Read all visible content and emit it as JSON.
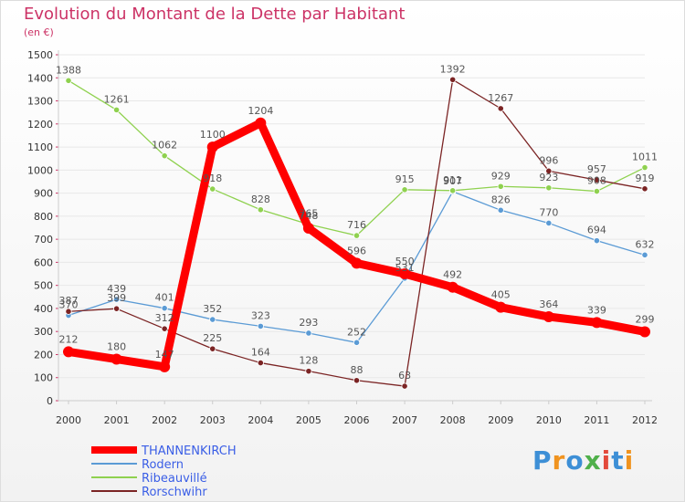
{
  "header": {
    "title": "Evolution du Montant de la Dette par Habitant",
    "subtitle": "(en €)"
  },
  "logo": {
    "text": "Proxiti",
    "letter_colors": [
      "#3d8fd6",
      "#f0931f",
      "#3d8fd6",
      "#4fb04a",
      "#e34a3b",
      "#3d8fd6",
      "#f0931f"
    ]
  },
  "colors": {
    "axis": "#cccccc",
    "grid": "#e8e8e8",
    "tick_text": "#333333",
    "label_text": "#555555",
    "title": "#cc3366",
    "legend_text": "#3a5ee6"
  },
  "chart_data": {
    "type": "line",
    "title": "Evolution du Montant de la Dette par Habitant",
    "ylabel": "(en €)",
    "xlabel": "",
    "x": [
      "2000",
      "2001",
      "2002",
      "2003",
      "2004",
      "2005",
      "2006",
      "2007",
      "2008",
      "2009",
      "2010",
      "2011",
      "2012"
    ],
    "ylim": [
      0,
      1500
    ],
    "yticks": [
      0,
      100,
      200,
      300,
      400,
      500,
      600,
      700,
      800,
      900,
      1000,
      1100,
      1200,
      1300,
      1400,
      1500
    ],
    "grid": true,
    "legend_position": "bottom-left",
    "series": [
      {
        "name": "THANNENKIRCH",
        "color": "#ff0000",
        "emphasis": true,
        "values": [
          212,
          180,
          147,
          1100,
          1204,
          748,
          596,
          550,
          492,
          405,
          364,
          339,
          299
        ],
        "labels": [
          "212",
          "180",
          "147",
          "1100",
          "1204",
          "748",
          "596",
          "550",
          "492",
          "405",
          "364",
          "339",
          "299"
        ]
      },
      {
        "name": "Rodern",
        "color": "#5b9bd5",
        "emphasis": false,
        "values": [
          370,
          439,
          401,
          352,
          323,
          293,
          252,
          531,
          907,
          826,
          770,
          694,
          632
        ],
        "labels": [
          "370",
          "439",
          "401",
          "352",
          "323",
          "293",
          "252",
          "531",
          "907",
          "826",
          "770",
          "694",
          "632"
        ]
      },
      {
        "name": "Ribeauvillé",
        "color": "#8fd14f",
        "emphasis": false,
        "values": [
          1388,
          1261,
          1062,
          918,
          828,
          765,
          716,
          915,
          911,
          929,
          923,
          908,
          1011
        ],
        "labels": [
          "1388",
          "1261",
          "1062",
          "918",
          "828",
          "765",
          "716",
          "915",
          "911",
          "929",
          "923",
          "908",
          "1011"
        ]
      },
      {
        "name": "Rorschwihr",
        "color": "#7b2424",
        "emphasis": false,
        "values": [
          387,
          399,
          312,
          225,
          164,
          128,
          88,
          63,
          1392,
          1267,
          996,
          957,
          919
        ],
        "labels": [
          "387",
          "399",
          "312",
          "225",
          "164",
          "128",
          "88",
          "63",
          "1392",
          "1267",
          "996",
          "957",
          "919"
        ]
      }
    ]
  }
}
